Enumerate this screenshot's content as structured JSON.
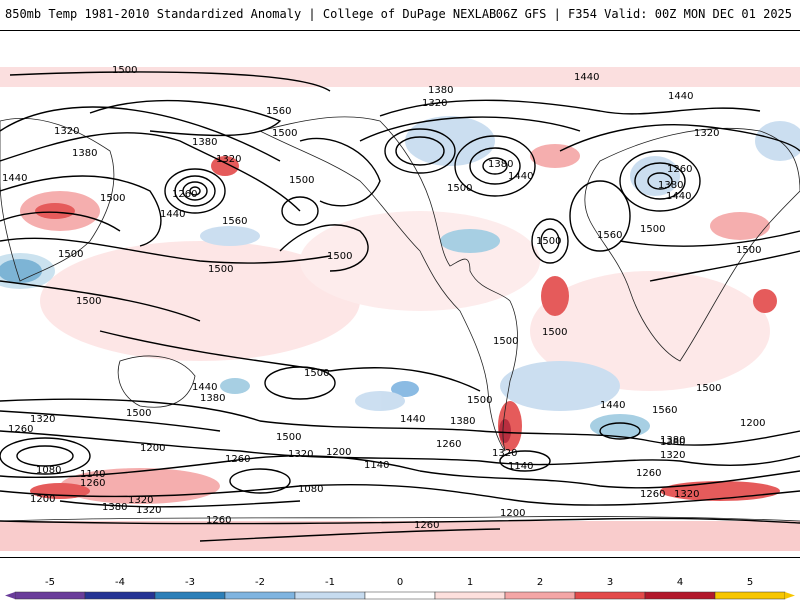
{
  "header": {
    "left_title": "850mb Temp 1981-2010 Standardized Anomaly | College of DuPage NEXLAB",
    "right_title": "06Z GFS | F354 Valid: 00Z MON DEC 01 2025"
  },
  "map": {
    "contour_labels": [
      {
        "id": "c1",
        "text": "1500"
      },
      {
        "id": "c2",
        "text": "1560"
      },
      {
        "id": "c3",
        "text": "1500"
      },
      {
        "id": "c4",
        "text": "1320"
      },
      {
        "id": "c5",
        "text": "1380"
      },
      {
        "id": "c6",
        "text": "1440"
      },
      {
        "id": "c7",
        "text": "1500"
      },
      {
        "id": "c8",
        "text": "1380"
      },
      {
        "id": "c9",
        "text": "1320"
      },
      {
        "id": "c10",
        "text": "1260"
      },
      {
        "id": "c11",
        "text": "1440"
      },
      {
        "id": "c12",
        "text": "1500"
      },
      {
        "id": "c13",
        "text": "1560"
      },
      {
        "id": "c14",
        "text": "1500"
      },
      {
        "id": "c15",
        "text": "1500"
      },
      {
        "id": "c16",
        "text": "1380"
      },
      {
        "id": "c17",
        "text": "1320"
      },
      {
        "id": "c18",
        "text": "1500"
      },
      {
        "id": "c19",
        "text": "1380"
      },
      {
        "id": "c20",
        "text": "1440"
      },
      {
        "id": "c21",
        "text": "1500"
      },
      {
        "id": "c22",
        "text": "1560"
      },
      {
        "id": "c23",
        "text": "1440"
      },
      {
        "id": "c24",
        "text": "1440"
      },
      {
        "id": "c25",
        "text": "1320"
      },
      {
        "id": "c26",
        "text": "1260"
      },
      {
        "id": "c27",
        "text": "1380"
      },
      {
        "id": "c28",
        "text": "1440"
      },
      {
        "id": "c29",
        "text": "1500"
      },
      {
        "id": "c30",
        "text": "1500"
      },
      {
        "id": "c31",
        "text": "1500"
      },
      {
        "id": "c32",
        "text": "1500"
      },
      {
        "id": "c33",
        "text": "1500"
      },
      {
        "id": "c34",
        "text": "1500"
      },
      {
        "id": "c35",
        "text": "1500"
      },
      {
        "id": "c36",
        "text": "1440"
      },
      {
        "id": "c37",
        "text": "1380"
      },
      {
        "id": "c38",
        "text": "1500"
      },
      {
        "id": "c39",
        "text": "1500"
      },
      {
        "id": "c40",
        "text": "1440"
      },
      {
        "id": "c41",
        "text": "1380"
      },
      {
        "id": "c42",
        "text": "1500"
      },
      {
        "id": "c43",
        "text": "1440"
      },
      {
        "id": "c44",
        "text": "1560"
      },
      {
        "id": "c45",
        "text": "1200"
      },
      {
        "id": "c46",
        "text": "1320"
      },
      {
        "id": "c47",
        "text": "1260"
      },
      {
        "id": "c48",
        "text": "1500"
      },
      {
        "id": "c49",
        "text": "1320"
      },
      {
        "id": "c50",
        "text": "1200"
      },
      {
        "id": "c51",
        "text": "1260"
      },
      {
        "id": "c52",
        "text": "1140"
      },
      {
        "id": "c53",
        "text": "1260"
      },
      {
        "id": "c54",
        "text": "1320"
      },
      {
        "id": "c55",
        "text": "1380"
      },
      {
        "id": "c56",
        "text": "1200"
      },
      {
        "id": "c57",
        "text": "1260"
      },
      {
        "id": "c58",
        "text": "1080"
      },
      {
        "id": "c59",
        "text": "1140"
      },
      {
        "id": "c60",
        "text": "1260"
      },
      {
        "id": "c61",
        "text": "1200"
      },
      {
        "id": "c62",
        "text": "1380"
      },
      {
        "id": "c63",
        "text": "1320"
      },
      {
        "id": "c64",
        "text": "1320"
      },
      {
        "id": "c65",
        "text": "1260"
      },
      {
        "id": "c66",
        "text": "1080"
      },
      {
        "id": "c67",
        "text": "1140"
      },
      {
        "id": "c68",
        "text": "1200"
      },
      {
        "id": "c69",
        "text": "1260"
      },
      {
        "id": "c70",
        "text": "1260"
      },
      {
        "id": "c71",
        "text": "1320"
      },
      {
        "id": "c72",
        "text": "1380"
      },
      {
        "id": "c73",
        "text": "1320"
      }
    ]
  },
  "colorbar": {
    "ticks": [
      "-5",
      "-4",
      "-3",
      "-2",
      "-1",
      "0",
      "1",
      "2",
      "3",
      "4",
      "5"
    ],
    "colors": [
      "#6a3d9a",
      "#253494",
      "#2c7fb8",
      "#7fb4e0",
      "#c6dbef",
      "#ffffff",
      "#fde0dd",
      "#f4a6a6",
      "#e34a4a",
      "#b2182b",
      "#f7c600"
    ]
  }
}
